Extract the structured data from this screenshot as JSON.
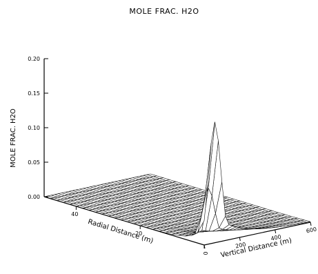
{
  "chart_data": {
    "type": "surface",
    "title": "MOLE FRAC.  H2O",
    "zlabel": "MOLE FRAC.  H2O",
    "xlabel": "Radial Distance (m)",
    "ylabel": "Vertical Distance (m)",
    "z_ticks": [
      "0.00",
      "0.05",
      "0.10",
      "0.15",
      "0.20"
    ],
    "x_ticks": [
      "40",
      "20",
      "0"
    ],
    "y_ticks": [
      "0",
      "200",
      "400",
      "600"
    ],
    "zlim": [
      0,
      0.2
    ],
    "xlim": [
      0,
      50
    ],
    "ylim": [
      0,
      600
    ],
    "peak": {
      "x": 0,
      "y": 0,
      "z": 0.175
    },
    "grid": true
  }
}
